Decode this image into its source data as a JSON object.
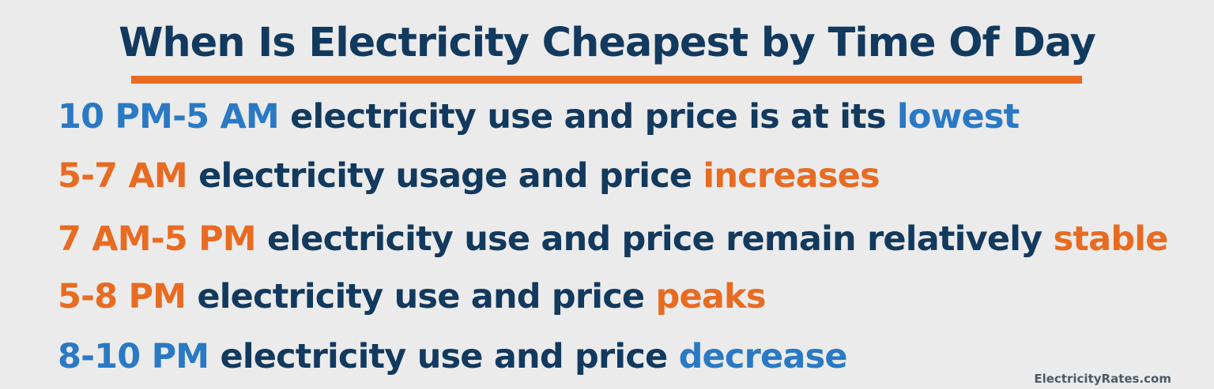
{
  "title": "When Is Electricity Cheapest by Time Of Day",
  "lines": [
    {
      "time": "10 PM-5 AM",
      "text": "electricity use and price is at its",
      "keyword": "lowest"
    },
    {
      "time": "5-7 AM",
      "text": "electricity usage and price",
      "keyword": "increases"
    },
    {
      "time": "7 AM-5 PM",
      "text": "electricity use and price remain relatively",
      "keyword": "stable"
    },
    {
      "time": "5-8 PM",
      "text": "electricity use and price",
      "keyword": "peaks"
    },
    {
      "time": "8-10 PM",
      "text": "electricity use and price",
      "keyword": "decrease"
    }
  ],
  "footer": "ElectricityRates.com",
  "colors": {
    "navy": "#12395e",
    "blue": "#2a79c4",
    "orange": "#e86b22",
    "background": "#ebebeb"
  }
}
